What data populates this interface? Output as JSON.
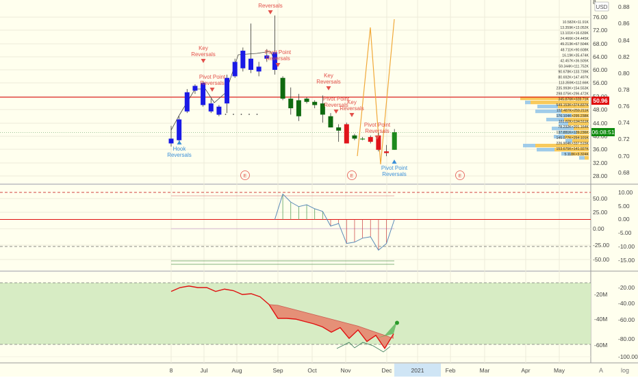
{
  "colors": {
    "background": "#ffffee",
    "grid": "#ecebd9",
    "separator": "#9a9a9a",
    "bull_blue": "#1a1ae6",
    "bull_green": "#1d8a1d",
    "bear_green": "#0f6a0f",
    "bear_red": "#e0141a",
    "signal_red": "#e2504a",
    "signal_blue": "#3a8fd8",
    "last_price": "#0d8a0d",
    "line_red": "#e01010",
    "fill_red": "#e8806a",
    "fill_green": "#5cb85c",
    "band_fill": "#d7ecc4",
    "vp_yellow": "#f7c44a",
    "vp_blue": "#8fc3e8",
    "osc_line": "#5a8ab8"
  },
  "header": {
    "currency": "USD",
    "scale_label": "A",
    "scale_log": "log"
  },
  "price_axis": {
    "ticks": [
      "76.00",
      "72.00",
      "68.00",
      "64.00",
      "60.00",
      "56.00",
      "52.00",
      "48.00",
      "44.00",
      "40.00",
      "36.00",
      "32.00",
      "28.00"
    ],
    "ratio_ticks": [
      "0.88",
      "0.86",
      "0.84",
      "0.82",
      "0.80",
      "0.78",
      "0.76",
      "0.74",
      "0.72",
      "0.70",
      "0.68"
    ],
    "top_partial": "8"
  },
  "badges": {
    "level": "50.96",
    "countdown": "06:08:51"
  },
  "time_axis": [
    "8",
    "Jul",
    "Aug",
    "Sep",
    "Oct",
    "Nov",
    "Dec",
    "2021",
    "Feb",
    "Mar",
    "Apr",
    "May"
  ],
  "earnings_marker": "E",
  "signal_labels": {
    "reversals": "Reversals",
    "key": "Key Reversals",
    "pivot": "Pivot Point Reversals",
    "hook": "Hook Reversals"
  },
  "volume_profile_labels": [
    "10.582K×11.91K",
    "13.359K×13.052K",
    "13.101K×16.639K",
    "24.466K×24.445K",
    "49.213K×67.504K",
    "48.711K×90.608K",
    "16.19K×35.474K",
    "42.457K×36.505K",
    "59.344K×111.752K",
    "90.678K×133.739K",
    "80.692K×147.497K",
    "113.359K×112.66K",
    "235.993K×154.553K",
    "298.075K×296.472K",
    "345.876K×328.71K",
    "549.153K×374.837K",
    "152.487K×259.211K",
    "176.104K×295.238K",
    "161.82K×194.511K",
    "78.232K×201.164K",
    "137.881K×139.236K",
    "145.077K×254.101K",
    "226.904K×337.515K",
    "153.675K×141.927K",
    "5.118K×3.324K"
  ],
  "osc_axis": {
    "left": [
      "50.00",
      "25.00",
      "0.00",
      "-25.00",
      "-50.00"
    ],
    "right": [
      "10.00",
      "5.00",
      "0.00",
      "-5.00",
      "-10.00",
      "-15.00"
    ]
  },
  "flow_axis": {
    "left": [
      "-20M",
      "-40M",
      "-60M"
    ],
    "right": [
      "-20.00",
      "-40.00",
      "-60.00",
      "-80.00",
      "-100.00"
    ]
  },
  "chart_data": {
    "type": "candlestick",
    "candles": [
      {
        "o": 38.0,
        "h": 42.0,
        "l": 35.5,
        "c": 36.5,
        "color": "blue"
      },
      {
        "o": 37.5,
        "h": 45.0,
        "l": 37.0,
        "c": 44.0,
        "color": "blue"
      },
      {
        "o": 46.5,
        "h": 53.5,
        "l": 46.0,
        "c": 52.5,
        "color": "blue"
      },
      {
        "o": 53.0,
        "h": 55.0,
        "l": 52.0,
        "c": 54.5,
        "color": "blue"
      },
      {
        "o": 48.5,
        "h": 56.0,
        "l": 48.0,
        "c": 55.5,
        "color": "blue"
      },
      {
        "o": 49.0,
        "h": 50.5,
        "l": 46.0,
        "c": 46.5,
        "color": "blue"
      },
      {
        "o": 45.5,
        "h": 48.5,
        "l": 45.0,
        "c": 48.0,
        "color": "blue"
      },
      {
        "o": 49.0,
        "h": 58.0,
        "l": 46.0,
        "c": 57.0,
        "color": "blue"
      },
      {
        "o": 57.5,
        "h": 63.0,
        "l": 57.0,
        "c": 62.0,
        "color": "blue"
      },
      {
        "o": 60.0,
        "h": 66.5,
        "l": 59.0,
        "c": 65.5,
        "color": "blue"
      },
      {
        "o": 59.5,
        "h": 74.0,
        "l": 58.5,
        "c": 63.0,
        "color": "blue"
      },
      {
        "o": 59.0,
        "h": 62.0,
        "l": 57.5,
        "c": 60.5,
        "color": "blue"
      },
      {
        "o": 63.0,
        "h": 66.0,
        "l": 62.0,
        "c": 64.0,
        "color": "blue"
      },
      {
        "o": 65.0,
        "h": 76.5,
        "l": 58.0,
        "c": 59.5,
        "color": "blue"
      },
      {
        "o": 57.0,
        "h": 57.5,
        "l": 50.0,
        "c": 50.5,
        "color": "green"
      },
      {
        "o": 50.5,
        "h": 54.0,
        "l": 45.5,
        "c": 47.5,
        "color": "green"
      },
      {
        "o": 50.0,
        "h": 52.0,
        "l": 43.5,
        "c": 45.0,
        "color": "green"
      },
      {
        "o": 50.5,
        "h": 51.0,
        "l": 49.0,
        "c": 49.5,
        "color": "green"
      },
      {
        "o": 49.5,
        "h": 50.0,
        "l": 47.5,
        "c": 48.5,
        "color": "green"
      },
      {
        "o": 49.0,
        "h": 51.5,
        "l": 43.0,
        "c": 45.5,
        "color": "green"
      },
      {
        "o": 45.0,
        "h": 46.0,
        "l": 41.5,
        "c": 41.5,
        "color": "green"
      },
      {
        "o": 41.5,
        "h": 42.5,
        "l": 37.0,
        "c": 40.5,
        "color": "green"
      },
      {
        "o": 42.5,
        "h": 43.0,
        "l": 36.5,
        "c": 36.5,
        "color": "red"
      },
      {
        "o": 39.0,
        "h": 39.5,
        "l": 37.5,
        "c": 38.0,
        "color": "green"
      },
      {
        "o": 38.0,
        "h": 38.5,
        "l": 37.5,
        "c": 38.0,
        "color": "green"
      },
      {
        "o": 38.5,
        "h": 39.0,
        "l": 36.5,
        "c": 37.0,
        "color": "red"
      },
      {
        "o": 39.0,
        "h": 40.0,
        "l": 34.0,
        "c": 34.5,
        "color": "red"
      },
      {
        "o": 34.0,
        "h": 36.0,
        "l": 32.5,
        "c": 33.5,
        "color": "red"
      },
      {
        "o": 34.5,
        "h": 41.0,
        "l": 34.5,
        "c": 40.0,
        "color": "green"
      }
    ],
    "price_ylim": [
      26,
      80
    ],
    "last_price": 40.0,
    "level_line": 50.96,
    "oscillator": {
      "upper_line": 9.5,
      "zero": 0,
      "lower_line": -7.5,
      "values": [
        0,
        0,
        0,
        0,
        0,
        0,
        0,
        0,
        0,
        0,
        0,
        0,
        0,
        0,
        9.5,
        6.5,
        4.8,
        5.5,
        4.0,
        3.0,
        -2.5,
        -1.5,
        -9.0,
        -8.5,
        -7.0,
        -6.5,
        -11.5,
        -9.0,
        0
      ],
      "ylim": [
        -15,
        10.5
      ]
    },
    "flow_line": {
      "values": [
        -25,
        -20,
        -18,
        -20,
        -20,
        -25,
        -22,
        -24,
        -29,
        -28,
        -32,
        -42,
        -60,
        -60,
        -61,
        -64,
        -67,
        -71,
        -78,
        -72,
        -86,
        -75,
        -90,
        -82,
        -99,
        -80
      ],
      "signal": [
        -25,
        -20,
        -18,
        -20,
        -20,
        -25,
        -22,
        -24,
        -29,
        -28,
        -32,
        -42,
        -43,
        -46,
        -49,
        -52,
        -55,
        -58,
        -61,
        -64,
        -67,
        -70,
        -74,
        -78,
        -82,
        -86
      ],
      "ylim": [
        -108,
        -8
      ]
    }
  }
}
